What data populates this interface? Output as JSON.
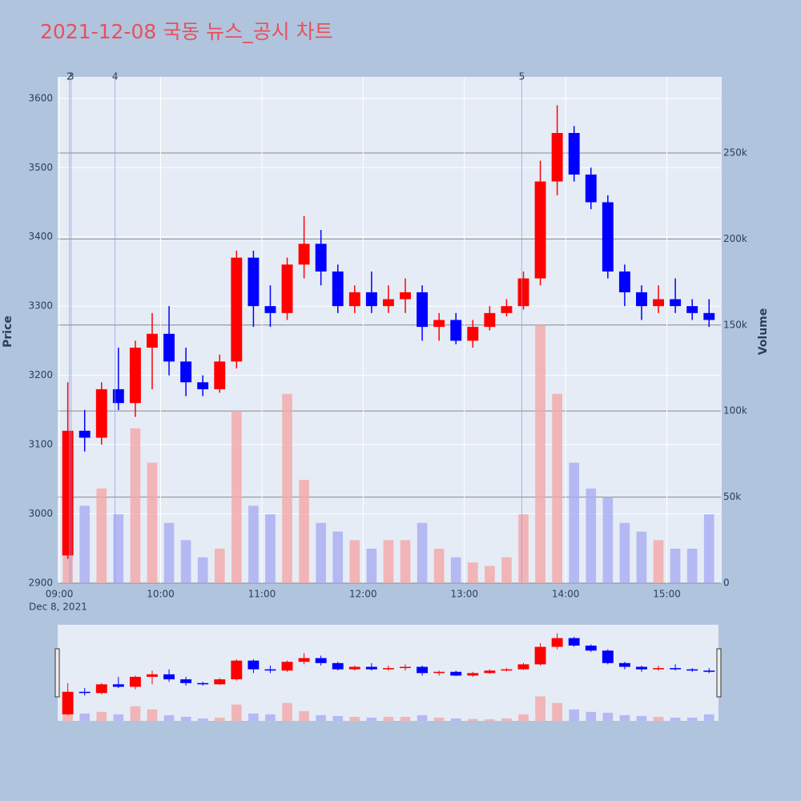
{
  "chart_data": {
    "type": "candlestick",
    "title": "2021-12-08 국동 뉴스_공시 차트",
    "date_label": "Dec 8, 2021",
    "y_title": "Price",
    "y2_title": "Volume",
    "increasing_color": "#ff0000",
    "decreasing_color": "#0000ff",
    "volume_increasing_color": "#f4a8a8",
    "volume_decreasing_color": "#a8acf4",
    "x": [
      "09:00",
      "09:10",
      "09:20",
      "09:30",
      "09:40",
      "09:50",
      "10:00",
      "10:10",
      "10:20",
      "10:30",
      "10:40",
      "10:50",
      "11:00",
      "11:10",
      "11:20",
      "11:30",
      "11:40",
      "11:50",
      "12:00",
      "12:10",
      "12:20",
      "12:30",
      "12:40",
      "12:50",
      "13:00",
      "13:10",
      "13:20",
      "13:30",
      "13:40",
      "13:50",
      "14:00",
      "14:10",
      "14:20",
      "14:30",
      "14:40",
      "14:50",
      "15:00",
      "15:10",
      "15:20"
    ],
    "open": [
      2940,
      3120,
      3110,
      3180,
      3160,
      3240,
      3260,
      3220,
      3190,
      3180,
      3220,
      3370,
      3300,
      3290,
      3360,
      3390,
      3350,
      3300,
      3320,
      3300,
      3310,
      3320,
      3270,
      3280,
      3250,
      3270,
      3290,
      3300,
      3340,
      3480,
      3550,
      3490,
      3450,
      3350,
      3320,
      3300,
      3310,
      3300,
      3290
    ],
    "high": [
      3190,
      3150,
      3190,
      3240,
      3250,
      3290,
      3300,
      3240,
      3200,
      3230,
      3380,
      3380,
      3330,
      3370,
      3430,
      3410,
      3360,
      3330,
      3350,
      3330,
      3340,
      3330,
      3290,
      3290,
      3280,
      3300,
      3310,
      3350,
      3510,
      3590,
      3560,
      3500,
      3460,
      3360,
      3330,
      3330,
      3340,
      3310,
      3310
    ],
    "low": [
      2935,
      3090,
      3100,
      3150,
      3140,
      3180,
      3200,
      3170,
      3170,
      3175,
      3210,
      3270,
      3270,
      3280,
      3340,
      3330,
      3290,
      3290,
      3290,
      3290,
      3290,
      3250,
      3250,
      3245,
      3240,
      3265,
      3285,
      3295,
      3330,
      3460,
      3480,
      3440,
      3340,
      3300,
      3280,
      3290,
      3290,
      3280,
      3270
    ],
    "close": [
      3120,
      3110,
      3180,
      3160,
      3240,
      3260,
      3220,
      3190,
      3180,
      3220,
      3370,
      3300,
      3290,
      3360,
      3390,
      3350,
      3300,
      3320,
      3300,
      3310,
      3320,
      3270,
      3280,
      3250,
      3270,
      3290,
      3300,
      3340,
      3480,
      3550,
      3490,
      3450,
      3350,
      3320,
      3300,
      3310,
      3300,
      3290,
      3280
    ],
    "volume": [
      60000,
      45000,
      55000,
      40000,
      90000,
      70000,
      35000,
      25000,
      15000,
      20000,
      100000,
      45000,
      40000,
      110000,
      60000,
      35000,
      30000,
      25000,
      20000,
      25000,
      25000,
      35000,
      20000,
      15000,
      12000,
      10000,
      15000,
      40000,
      150000,
      110000,
      70000,
      55000,
      50000,
      35000,
      30000,
      25000,
      20000,
      20000,
      40000
    ],
    "xlim": [
      "08:59",
      "15:32"
    ],
    "xticks": [
      "09:00",
      "10:00",
      "11:00",
      "12:00",
      "13:00",
      "14:00",
      "15:00"
    ],
    "ylim": [
      2900,
      3631
    ],
    "yticks": [
      2900,
      3000,
      3100,
      3200,
      3300,
      3400,
      3500,
      3600
    ],
    "y2lim": [
      0,
      294200
    ],
    "y2ticks": [
      0,
      {
        "value": 50000,
        "label": "50k"
      },
      {
        "value": 100000,
        "label": "100k"
      },
      {
        "value": 150000,
        "label": "150k"
      },
      {
        "value": 200000,
        "label": "200k"
      },
      {
        "value": 250000,
        "label": "250k"
      }
    ],
    "annotations": [
      {
        "x": "09:06",
        "label": "2"
      },
      {
        "x": "09:07",
        "label": "3"
      },
      {
        "x": "09:33",
        "label": "4"
      },
      {
        "x": "13:34",
        "label": "5"
      }
    ],
    "grid": true,
    "rangeslider": true
  }
}
